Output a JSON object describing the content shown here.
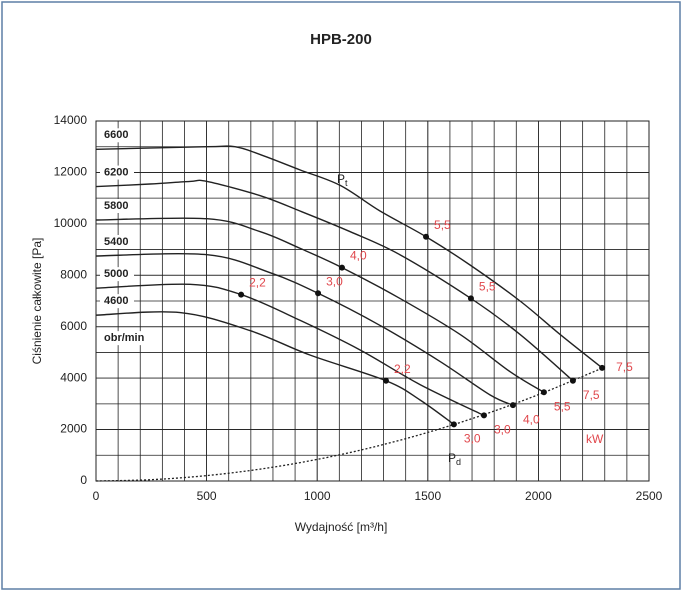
{
  "chart_data": {
    "type": "line",
    "title": "HPB-200",
    "x_label": "Wydajność [m³/h]",
    "y_label": "Ciśnienie całkowite [Pa]",
    "xlim": [
      0,
      2500
    ],
    "ylim": [
      0,
      14000
    ],
    "xticks": [
      0,
      500,
      1000,
      1500,
      2000,
      2500
    ],
    "yticks": [
      0,
      2000,
      4000,
      6000,
      8000,
      10000,
      12000,
      14000
    ],
    "x_minor_step": 100,
    "y_minor_step": 1000,
    "grid": true,
    "speed_unit": "obr/min",
    "power_unit": "kW",
    "pt_label": {
      "main": "P",
      "sub": "t"
    },
    "series": [
      {
        "name": "6600",
        "color": "#222222",
        "x": [
          0,
          502,
          628,
          741,
          922,
          1103,
          1284,
          1492,
          1691,
          1917,
          2098,
          2288
        ],
        "values": [
          12900,
          13000,
          13000,
          12700,
          12100,
          11500,
          10500,
          9500,
          8400,
          7000,
          5700,
          4400
        ],
        "points": [
          {
            "x": 1492,
            "y": 9500,
            "label": "5,5"
          },
          {
            "x": 2288,
            "y": 4400,
            "label": "7,5"
          }
        ]
      },
      {
        "name": "6200",
        "color": "#222222",
        "x": [
          0,
          244,
          425,
          502,
          741,
          922,
          1148,
          1374,
          1695,
          1917,
          2156
        ],
        "values": [
          11450,
          11550,
          11650,
          11650,
          11100,
          10500,
          9700,
          8800,
          7100,
          5700,
          3900
        ],
        "points": [
          {
            "x": 1695,
            "y": 7100,
            "label": "5,5"
          },
          {
            "x": 2156,
            "y": 3900,
            "label": "7,5"
          }
        ]
      },
      {
        "name": "5800",
        "color": "#222222",
        "x": [
          0,
          502,
          741,
          922,
          1112,
          1374,
          1646,
          1872,
          2025
        ],
        "values": [
          10150,
          10200,
          9700,
          9050,
          8300,
          7100,
          5700,
          4250,
          3450
        ],
        "points": [
          {
            "x": 1112,
            "y": 8300,
            "label": "4,0"
          },
          {
            "x": 2025,
            "y": 3450,
            "label": "5,5"
          }
        ]
      },
      {
        "name": "5400",
        "color": "#222222",
        "x": [
          0,
          502,
          787,
          1004,
          1284,
          1555,
          1781,
          1885
        ],
        "values": [
          8750,
          8800,
          8100,
          7300,
          6050,
          4650,
          3350,
          2950
        ],
        "points": [
          {
            "x": 1004,
            "y": 7300,
            "label": "3,0"
          },
          {
            "x": 1885,
            "y": 2950,
            "label": "4,0"
          }
        ]
      },
      {
        "name": "5000",
        "color": "#222222",
        "x": [
          0,
          425,
          656,
          922,
          1193,
          1465,
          1754
        ],
        "values": [
          7500,
          7650,
          7250,
          6250,
          5100,
          3750,
          2550
        ],
        "points": [
          {
            "x": 656,
            "y": 7250,
            "label": "2,2"
          },
          {
            "x": 1754,
            "y": 2550,
            "label": "3,0"
          }
        ]
      },
      {
        "name": "4600",
        "color": "#222222",
        "x": [
          0,
          380,
          696,
          967,
          1311,
          1465,
          1618
        ],
        "values": [
          6450,
          6550,
          5850,
          4900,
          3900,
          3150,
          2200
        ],
        "points": [
          {
            "x": 1311,
            "y": 3900,
            "label": "2,2"
          },
          {
            "x": 1618,
            "y": 2200,
            "label": "3,0"
          }
        ]
      }
    ],
    "pd": {
      "main": "P",
      "sub": "d",
      "color": "#222222",
      "x": [
        0,
        250,
        500,
        750,
        1000,
        1250,
        1500,
        1750,
        2000,
        2250,
        2288
      ],
      "values": [
        0,
        52,
        210,
        472,
        839,
        1312,
        1889,
        2571,
        3358,
        4249,
        4394
      ]
    }
  }
}
